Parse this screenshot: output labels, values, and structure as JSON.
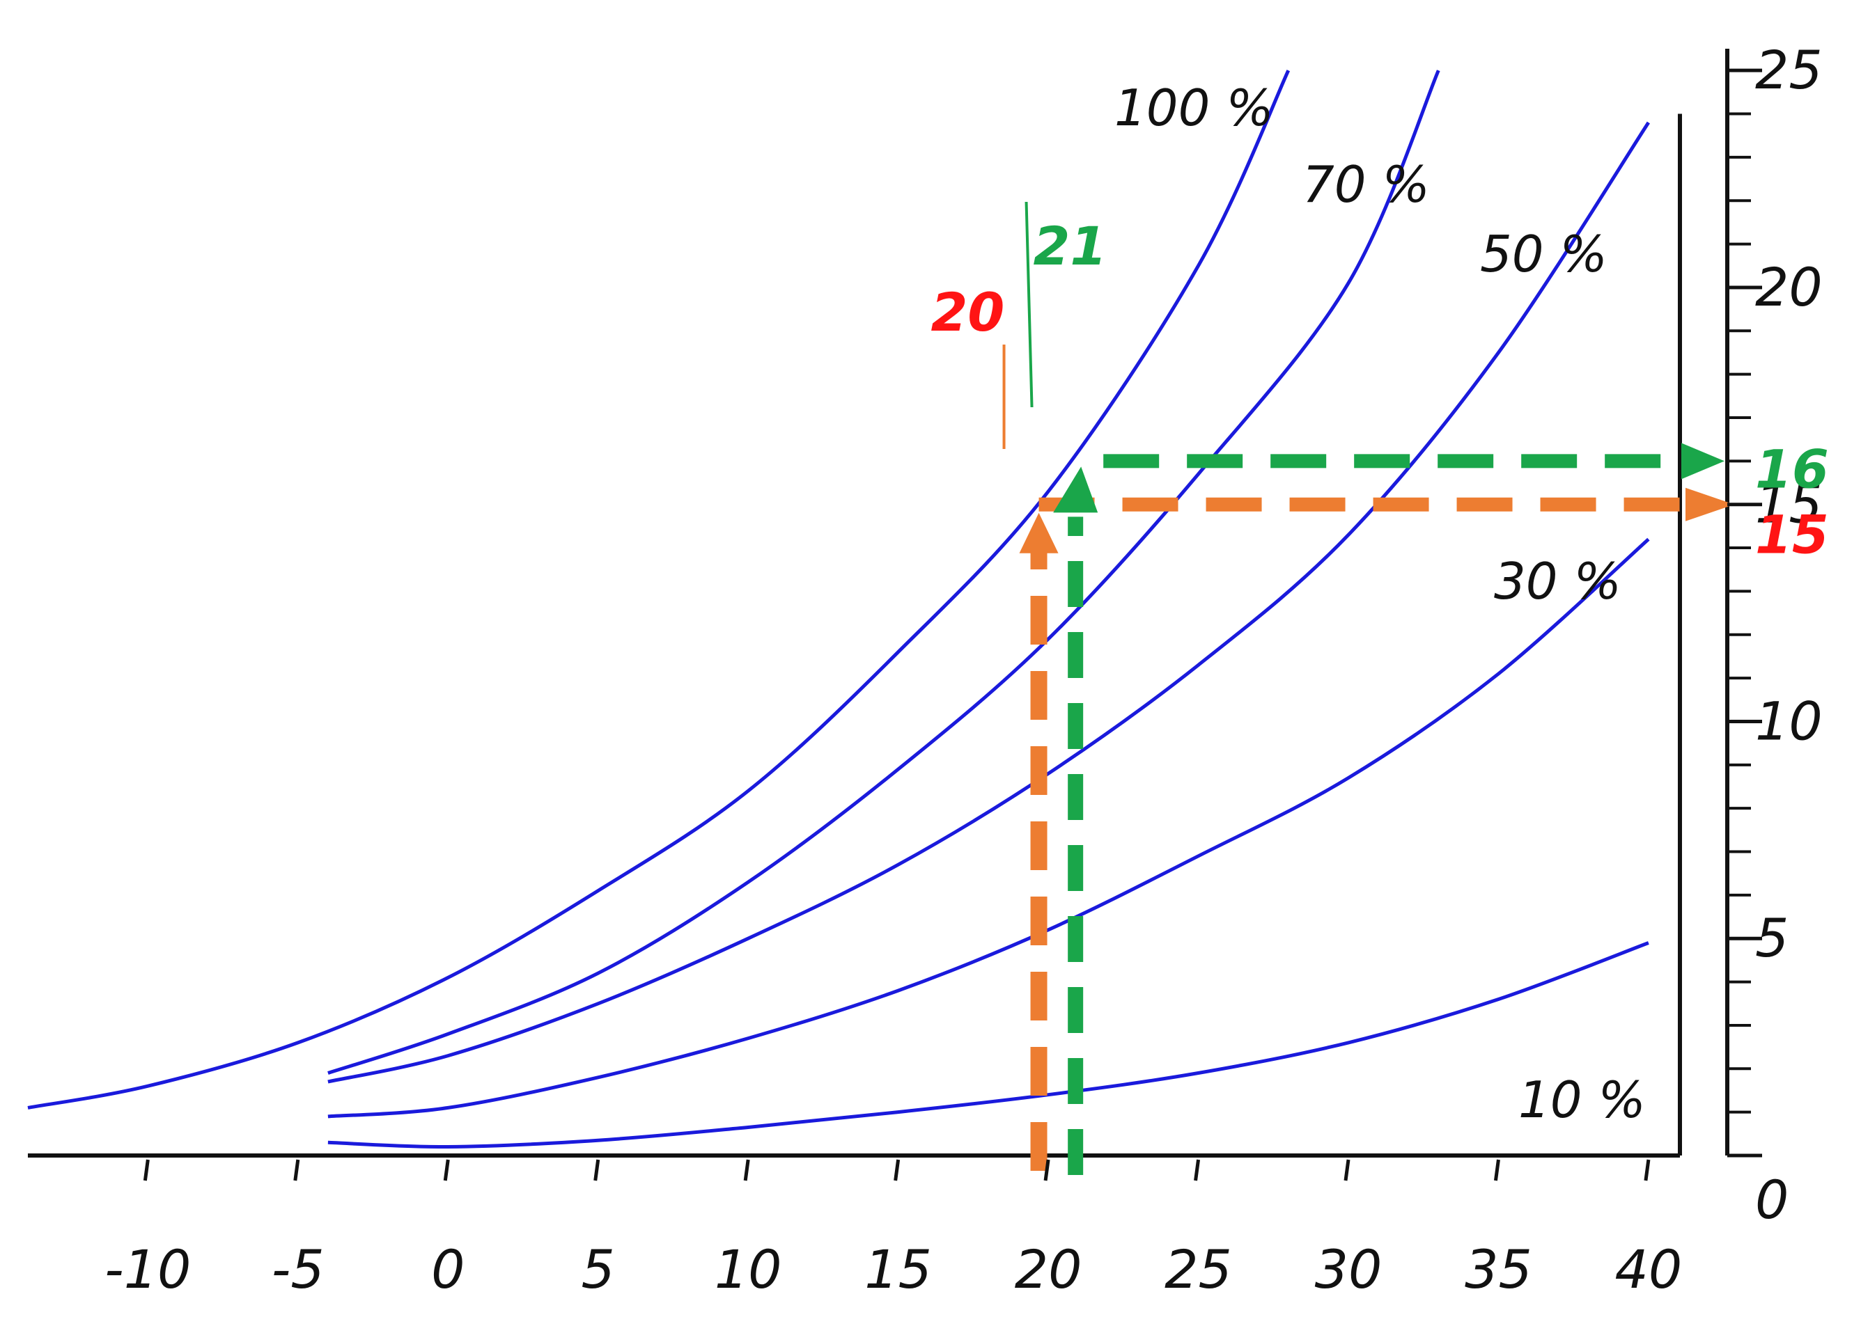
{
  "chart_data": {
    "type": "line",
    "title": "",
    "xlabel": "",
    "ylabel": "",
    "xlim": [
      -14,
      41
    ],
    "ylim": [
      0,
      25.5
    ],
    "x_ticks": [
      -10,
      -5,
      0,
      5,
      10,
      15,
      20,
      25,
      30,
      35,
      40
    ],
    "x_tick_labels": [
      "-10",
      "-5",
      "0",
      "5",
      "10",
      "15",
      "20",
      "25",
      "30",
      "35",
      "40"
    ],
    "y_ticks": [
      0,
      5,
      10,
      15,
      20,
      25
    ],
    "y_tick_labels": [
      "0",
      "5",
      "10",
      "15",
      "20",
      "25"
    ],
    "y_minor_step": 1,
    "grid": false,
    "series": [
      {
        "name": "100 %",
        "color": "#1a1adc",
        "points": [
          [
            -14,
            1.1
          ],
          [
            -10,
            1.6
          ],
          [
            -5,
            2.6
          ],
          [
            0,
            4.1
          ],
          [
            5,
            6.1
          ],
          [
            10,
            8.4
          ],
          [
            15,
            11.6
          ],
          [
            20,
            15.3
          ],
          [
            25,
            20.5
          ],
          [
            28,
            25.0
          ]
        ]
      },
      {
        "name": "70 %",
        "color": "#1a1adc",
        "points": [
          [
            -4,
            1.9
          ],
          [
            0,
            2.8
          ],
          [
            5,
            4.2
          ],
          [
            10,
            6.3
          ],
          [
            15,
            8.9
          ],
          [
            20,
            11.9
          ],
          [
            25,
            15.7
          ],
          [
            30,
            20.1
          ],
          [
            33,
            25.0
          ]
        ]
      },
      {
        "name": "50 %",
        "color": "#1a1adc",
        "points": [
          [
            -4,
            1.7
          ],
          [
            0,
            2.3
          ],
          [
            5,
            3.5
          ],
          [
            10,
            5.0
          ],
          [
            15,
            6.7
          ],
          [
            20,
            8.8
          ],
          [
            25,
            11.3
          ],
          [
            30,
            14.3
          ],
          [
            35,
            18.5
          ],
          [
            40,
            23.8
          ]
        ]
      },
      {
        "name": "30 %",
        "color": "#1a1adc",
        "points": [
          [
            -4,
            0.9
          ],
          [
            0,
            1.1
          ],
          [
            5,
            1.8
          ],
          [
            10,
            2.7
          ],
          [
            15,
            3.8
          ],
          [
            20,
            5.2
          ],
          [
            25,
            6.9
          ],
          [
            30,
            8.7
          ],
          [
            35,
            11.1
          ],
          [
            40,
            14.2
          ]
        ]
      },
      {
        "name": "10 %",
        "color": "#1a1adc",
        "points": [
          [
            -4,
            0.3
          ],
          [
            0,
            0.2
          ],
          [
            5,
            0.35
          ],
          [
            10,
            0.65
          ],
          [
            15,
            1.0
          ],
          [
            20,
            1.4
          ],
          [
            25,
            1.9
          ],
          [
            30,
            2.6
          ],
          [
            35,
            3.6
          ],
          [
            40,
            4.9
          ]
        ]
      }
    ],
    "annotations": [
      {
        "text": "20",
        "color": "#ff1414",
        "x": 19.5,
        "y": 15.0,
        "target_label": "15"
      },
      {
        "text": "21",
        "color": "#1aa64a",
        "x": 21,
        "y": 16.0,
        "target_label": "16"
      }
    ],
    "colors": {
      "curves": "#1a1adc",
      "orange": "#ed7d31",
      "green": "#1aa64a",
      "red": "#ff1414",
      "axis": "#111111"
    }
  }
}
